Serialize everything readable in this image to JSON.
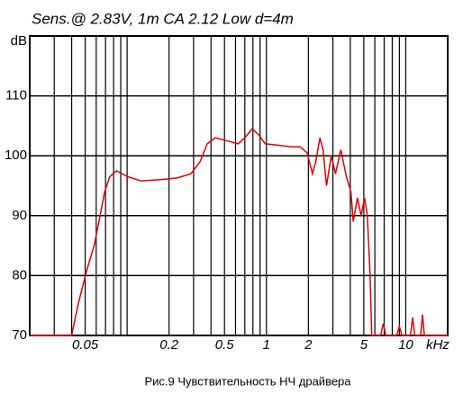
{
  "chart_data": {
    "type": "line",
    "title": "Sens.@ 2.83V, 1m CA 2.12 Low  d=4m",
    "caption": "Рис.9 Чувствительность НЧ драйвера",
    "y_label": "dB",
    "x_label": "kHz",
    "x_scale": "log",
    "xlim": [
      0.02,
      20
    ],
    "ylim": [
      70,
      120
    ],
    "xticks": [
      0.05,
      0.2,
      0.5,
      1,
      2,
      5,
      10
    ],
    "xminorticks": [
      0.02,
      0.03,
      0.04,
      0.06,
      0.07,
      0.08,
      0.09,
      0.1,
      0.3,
      0.4,
      0.6,
      0.7,
      0.8,
      0.9,
      3,
      4,
      6,
      7,
      8,
      9,
      20
    ],
    "yticks": [
      70,
      80,
      90,
      100,
      110
    ],
    "grid": true,
    "series": [
      {
        "color": "#e00000",
        "x": [
          0.02,
          0.04,
          0.0443,
          0.0515,
          0.058,
          0.064,
          0.069,
          0.075,
          0.084,
          0.101,
          0.126,
          0.17,
          0.229,
          0.287,
          0.334,
          0.376,
          0.43,
          0.52,
          0.625,
          0.7,
          0.79,
          0.88,
          0.98,
          1.19,
          1.49,
          1.74,
          1.96,
          2.14,
          2.26,
          2.42,
          2.55,
          2.7,
          2.92,
          3.13,
          3.42,
          3.75,
          4.04,
          4.2,
          4.5,
          4.78,
          5.06,
          5.3,
          5.55,
          5.7,
          6.6,
          6.9,
          7.2,
          8.6,
          9.0,
          9.4,
          10.8,
          11.2,
          11.6,
          12.8,
          13.2,
          13.6,
          20
        ],
        "values": [
          70,
          70,
          75,
          81,
          85,
          90,
          94,
          96.5,
          97.5,
          96.5,
          95.8,
          96,
          96.3,
          97,
          99,
          102,
          103,
          102.5,
          102,
          103,
          104.5,
          103.5,
          102,
          101.8,
          101.5,
          101.5,
          100.5,
          97,
          99,
          103,
          101,
          95,
          100,
          97,
          101,
          96.5,
          94,
          89,
          93,
          90,
          93,
          90,
          80,
          70,
          70,
          72,
          70,
          70,
          71.5,
          70,
          70,
          73,
          70,
          70,
          73.5,
          70,
          70
        ]
      }
    ]
  }
}
